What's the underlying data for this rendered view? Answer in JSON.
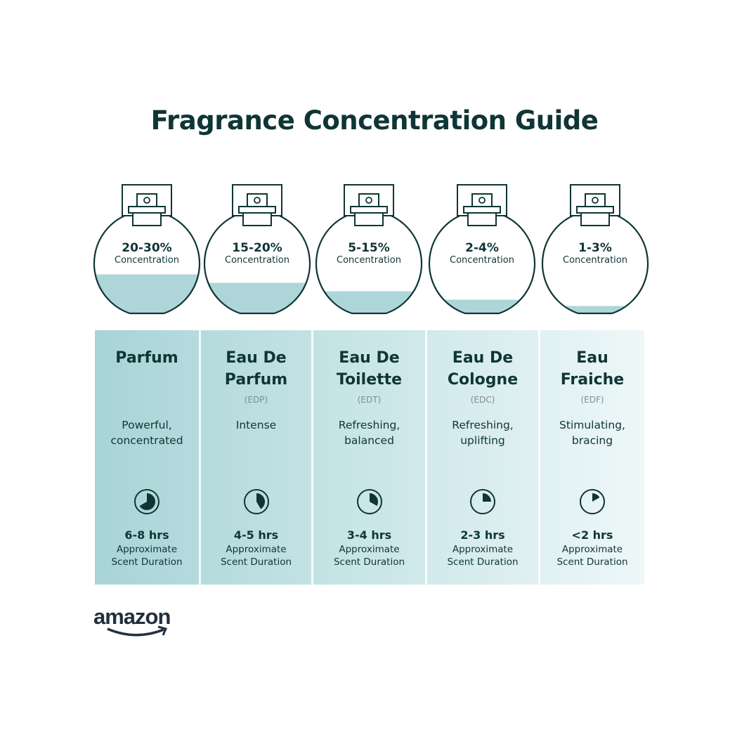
{
  "title": "Fragrance Concentration Guide",
  "colors": {
    "text": "#0f3535",
    "liquid": "#aed6d8",
    "panel_dark": "#a8d4d7",
    "panel_light": "#eef7f8"
  },
  "columns": [
    {
      "concentration": "20-30%",
      "concentration_label": "Concentration",
      "fill_level": 0.37,
      "name_line1": "Parfum",
      "name_line2": "",
      "abbr": "",
      "desc_line1": "Powerful,",
      "desc_line2": "concentrated",
      "clock_fraction": 0.667,
      "hours": "6-8 hrs",
      "dur_line1": "Approximate",
      "dur_line2": "Scent Duration"
    },
    {
      "concentration": "15-20%",
      "concentration_label": "Concentration",
      "fill_level": 0.29,
      "name_line1": "Eau De",
      "name_line2": "Parfum",
      "abbr": "(EDP)",
      "desc_line1": "Intense",
      "desc_line2": "",
      "clock_fraction": 0.417,
      "hours": "4-5 hrs",
      "dur_line1": "Approximate",
      "dur_line2": "Scent Duration"
    },
    {
      "concentration": "5-15%",
      "concentration_label": "Concentration",
      "fill_level": 0.21,
      "name_line1": "Eau De",
      "name_line2": "Toilette",
      "abbr": "(EDT)",
      "desc_line1": "Refreshing,",
      "desc_line2": "balanced",
      "clock_fraction": 0.333,
      "hours": "3-4 hrs",
      "dur_line1": "Approximate",
      "dur_line2": "Scent Duration"
    },
    {
      "concentration": "2-4%",
      "concentration_label": "Concentration",
      "fill_level": 0.13,
      "name_line1": "Eau De",
      "name_line2": "Cologne",
      "abbr": "(EDC)",
      "desc_line1": "Refreshing,",
      "desc_line2": "uplifting",
      "clock_fraction": 0.25,
      "hours": "2-3 hrs",
      "dur_line1": "Approximate",
      "dur_line2": "Scent Duration"
    },
    {
      "concentration": "1-3%",
      "concentration_label": "Concentration",
      "fill_level": 0.07,
      "name_line1": "Eau",
      "name_line2": "Fraiche",
      "abbr": "(EDF)",
      "desc_line1": "Stimulating,",
      "desc_line2": "bracing",
      "clock_fraction": 0.167,
      "hours": "<2 hrs",
      "dur_line1": "Approximate",
      "dur_line2": "Scent Duration"
    }
  ],
  "logo": "amazon"
}
